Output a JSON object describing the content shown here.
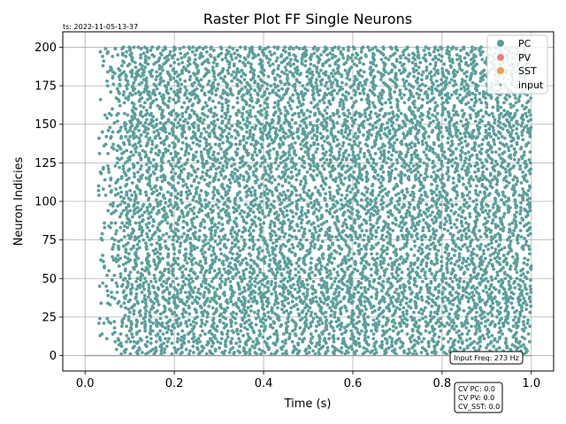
{
  "chart_data": {
    "type": "scatter",
    "title": "Raster Plot FF Single Neurons",
    "timestamp": "ts: 2022-11-05-13-37",
    "xlabel": "Time (s)",
    "ylabel": "Neuron Indicies",
    "xlim": [
      -0.05,
      1.05
    ],
    "ylim": [
      -10,
      210
    ],
    "xticks": [
      0.0,
      0.2,
      0.4,
      0.6,
      0.8,
      1.0
    ],
    "xtick_labels": [
      "0.0",
      "0.2",
      "0.4",
      "0.6",
      "0.8",
      "1.0"
    ],
    "yticks": [
      0,
      25,
      50,
      75,
      100,
      125,
      150,
      175,
      200
    ],
    "ytick_labels": [
      "0",
      "25",
      "50",
      "75",
      "100",
      "125",
      "150",
      "175",
      "200"
    ],
    "grid": true,
    "legend": {
      "placement": "top-right",
      "entries": [
        {
          "name": "PC",
          "color": "#5a9e9b"
        },
        {
          "name": "PV",
          "color": "#e88080"
        },
        {
          "name": "SST",
          "color": "#f0a050"
        },
        {
          "name": "input",
          "color": "#9a9a9a"
        }
      ]
    },
    "series": [
      {
        "name": "PC",
        "neuron_range": [
          1,
          200
        ],
        "time_range": [
          0.03,
          1.0
        ],
        "mean_spikes_per_neuron": 40
      },
      {
        "name": "input",
        "neuron_index": 0,
        "time_range": [
          0.0,
          1.0
        ],
        "spikes": 273
      }
    ],
    "annotations": {
      "input_freq": "Input Freq: 273 Hz",
      "cv_pc": "CV PC: 0.0",
      "cv_pv": "CV PV: 0.0",
      "cv_sst": "CV_SST: 0.0"
    }
  }
}
